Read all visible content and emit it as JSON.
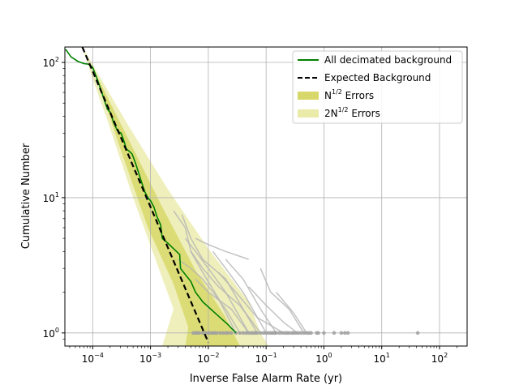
{
  "chart_data": {
    "type": "line",
    "xscale": "log",
    "yscale": "log",
    "xlim": [
      3.3e-05,
      300
    ],
    "ylim": [
      0.8,
      130
    ],
    "grid": true,
    "xlabel": "Inverse False Alarm Rate (yr)",
    "ylabel": "Cumulative Number",
    "legend_position": "top-right",
    "x_ticks": [
      {
        "value": 0.0001,
        "base": "10",
        "exp": "−4"
      },
      {
        "value": 0.001,
        "base": "10",
        "exp": "−3"
      },
      {
        "value": 0.01,
        "base": "10",
        "exp": "−2"
      },
      {
        "value": 0.1,
        "base": "10",
        "exp": "−1"
      },
      {
        "value": 1,
        "base": "10",
        "exp": "0"
      },
      {
        "value": 10,
        "base": "10",
        "exp": "1"
      },
      {
        "value": 100,
        "base": "10",
        "exp": "2"
      }
    ],
    "y_ticks": [
      {
        "value": 1,
        "base": "10",
        "exp": "0"
      },
      {
        "value": 10,
        "base": "10",
        "exp": "1"
      },
      {
        "value": 100,
        "base": "10",
        "exp": "2"
      }
    ],
    "legend": [
      {
        "kind": "line",
        "color": "#008000",
        "dash": "",
        "text": "All decimated background",
        "sup": "",
        "after": ""
      },
      {
        "kind": "line",
        "color": "#000000",
        "dash": "6,3",
        "text": "Expected Background",
        "sup": "",
        "after": ""
      },
      {
        "kind": "patch",
        "color": "#d4d45a",
        "opacity": 0.65,
        "text": "N",
        "sup": "1/2",
        "after": " Errors"
      },
      {
        "kind": "patch",
        "color": "#e8e8a0",
        "opacity": 0.65,
        "text": "2N",
        "sup": "1/2",
        "after": " Errors"
      }
    ],
    "colors": {
      "background_line": "#008000",
      "expected": "#000000",
      "error_1sigma": "#d4d45a",
      "error_2sigma": "#e8e8a0",
      "grey_traces": "#b4b4b4",
      "grey_points": "#a0a0a0"
    },
    "series": [
      {
        "name": "All decimated background",
        "style": "line",
        "color": "#008000",
        "points": [
          [
            3.4e-05,
            125
          ],
          [
            4.2e-05,
            110
          ],
          [
            5.5e-05,
            102
          ],
          [
            7e-05,
            98
          ],
          [
            8.5e-05,
            97
          ],
          [
            0.0001,
            92
          ],
          [
            0.00012,
            75
          ],
          [
            0.00014,
            62
          ],
          [
            0.00016,
            52
          ],
          [
            0.00018,
            45
          ],
          [
            0.0002,
            43
          ],
          [
            0.00023,
            36
          ],
          [
            0.00027,
            31
          ],
          [
            0.00031,
            30
          ],
          [
            0.00035,
            26
          ],
          [
            0.00038,
            23
          ],
          [
            0.00043,
            22
          ],
          [
            0.00048,
            21
          ],
          [
            0.00055,
            18
          ],
          [
            0.00063,
            15
          ],
          [
            0.0007,
            13
          ],
          [
            0.0008,
            11
          ],
          [
            0.0009,
            10
          ],
          [
            0.001,
            9.5
          ],
          [
            0.00115,
            8.5
          ],
          [
            0.0013,
            7.2
          ],
          [
            0.0015,
            6.3
          ],
          [
            0.0016,
            5.0
          ],
          [
            0.002,
            4.6
          ],
          [
            0.0025,
            4.2
          ],
          [
            0.0032,
            3.8
          ],
          [
            0.0033,
            3.0
          ],
          [
            0.004,
            2.7
          ],
          [
            0.005,
            2.4
          ],
          [
            0.006,
            2.0
          ],
          [
            0.008,
            1.7
          ],
          [
            0.011,
            1.5
          ],
          [
            0.016,
            1.3
          ],
          [
            0.022,
            1.15
          ],
          [
            0.03,
            1.0
          ]
        ]
      },
      {
        "name": "Expected Background",
        "style": "dashed",
        "color": "#000000",
        "points": [
          [
            6.6e-05,
            130
          ],
          [
            0.01,
            0.85
          ]
        ]
      }
    ],
    "bands": [
      {
        "name": "2N^1/2 Errors",
        "color": "#e8e8a0",
        "upper": [
          [
            6.6e-05,
            130
          ],
          [
            0.0004,
            35
          ],
          [
            0.002,
            11.5
          ],
          [
            0.01,
            4.2
          ],
          [
            0.05,
            1.7
          ],
          [
            0.08,
            1.0
          ],
          [
            0.11,
            0.8
          ]
        ],
        "lower": [
          [
            0.0016,
            0.8
          ],
          [
            0.0025,
            1.5
          ],
          [
            0.0005,
            10.0
          ],
          [
            0.00017,
            40
          ],
          [
            0.0001,
            75
          ],
          [
            6.6e-05,
            130
          ]
        ]
      },
      {
        "name": "N^1/2 Errors",
        "color": "#d4d45a",
        "upper": [
          [
            6.6e-05,
            130
          ],
          [
            0.0004,
            28
          ],
          [
            0.0015,
            9.0
          ],
          [
            0.006,
            2.9
          ],
          [
            0.02,
            1.3
          ],
          [
            0.035,
            0.8
          ]
        ],
        "lower": [
          [
            0.004,
            0.8
          ],
          [
            0.0045,
            1.1
          ],
          [
            0.0025,
            2.3
          ],
          [
            0.0009,
            6.0
          ],
          [
            0.0003,
            23
          ],
          [
            0.00012,
            75
          ],
          [
            6.6e-05,
            130
          ]
        ]
      }
    ],
    "grey_traces": [
      [
        [
          0.0025,
          8.0
        ],
        [
          0.004,
          6.0
        ],
        [
          0.005,
          4.0
        ],
        [
          0.008,
          2.8
        ],
        [
          0.015,
          1.8
        ],
        [
          0.03,
          1.0
        ]
      ],
      [
        [
          0.0035,
          7.5
        ],
        [
          0.005,
          5.0
        ],
        [
          0.008,
          3.5
        ],
        [
          0.02,
          2.5
        ],
        [
          0.04,
          1.5
        ],
        [
          0.07,
          1.0
        ]
      ],
      [
        [
          0.004,
          5.0
        ],
        [
          0.006,
          4.0
        ],
        [
          0.01,
          3.0
        ],
        [
          0.02,
          2.0
        ],
        [
          0.05,
          1.0
        ]
      ],
      [
        [
          0.005,
          4.0
        ],
        [
          0.008,
          3.0
        ],
        [
          0.015,
          2.2
        ],
        [
          0.035,
          1.6
        ],
        [
          0.08,
          1.0
        ]
      ],
      [
        [
          0.006,
          5.0
        ],
        [
          0.01,
          4.5
        ],
        [
          0.02,
          4.0
        ],
        [
          0.05,
          3.5
        ]
      ],
      [
        [
          0.012,
          4.0
        ],
        [
          0.02,
          3.0
        ],
        [
          0.04,
          2.0
        ],
        [
          0.1,
          1.0
        ]
      ],
      [
        [
          0.02,
          3.5
        ],
        [
          0.04,
          2.5
        ],
        [
          0.08,
          1.5
        ],
        [
          0.15,
          1.0
        ]
      ],
      [
        [
          0.006,
          2.5
        ],
        [
          0.01,
          2.0
        ],
        [
          0.025,
          1.5
        ],
        [
          0.05,
          1.0
        ]
      ],
      [
        [
          0.015,
          2.8
        ],
        [
          0.03,
          2.0
        ],
        [
          0.07,
          1.3
        ],
        [
          0.2,
          1.0
        ]
      ],
      [
        [
          0.08,
          3.0
        ],
        [
          0.12,
          2.0
        ],
        [
          0.25,
          1.5
        ],
        [
          0.45,
          1.0
        ]
      ],
      [
        [
          0.15,
          2.0
        ],
        [
          0.3,
          1.4
        ],
        [
          0.5,
          1.0
        ]
      ],
      [
        [
          0.003,
          3.5
        ],
        [
          0.005,
          3.0
        ],
        [
          0.008,
          2.5
        ],
        [
          0.012,
          2.0
        ],
        [
          0.02,
          1.5
        ],
        [
          0.035,
          1.0
        ]
      ],
      [
        [
          0.05,
          2.2
        ],
        [
          0.1,
          1.6
        ],
        [
          0.2,
          1.2
        ],
        [
          0.35,
          1.0
        ]
      ]
    ],
    "grey_points_y": 1.0,
    "grey_points_x": [
      0.0055,
      0.006,
      0.0065,
      0.007,
      0.008,
      0.009,
      0.01,
      0.011,
      0.012,
      0.013,
      0.014,
      0.016,
      0.018,
      0.02,
      0.022,
      0.025,
      0.03,
      0.035,
      0.04,
      0.045,
      0.05,
      0.055,
      0.06,
      0.065,
      0.07,
      0.08,
      0.09,
      0.1,
      0.11,
      0.12,
      0.13,
      0.14,
      0.15,
      0.17,
      0.19,
      0.21,
      0.23,
      0.25,
      0.28,
      0.3,
      0.33,
      0.36,
      0.4,
      0.45,
      0.5,
      0.55,
      0.6,
      0.75,
      0.8,
      1.0,
      1.5,
      2.0,
      2.3,
      2.6,
      42.0
    ]
  }
}
